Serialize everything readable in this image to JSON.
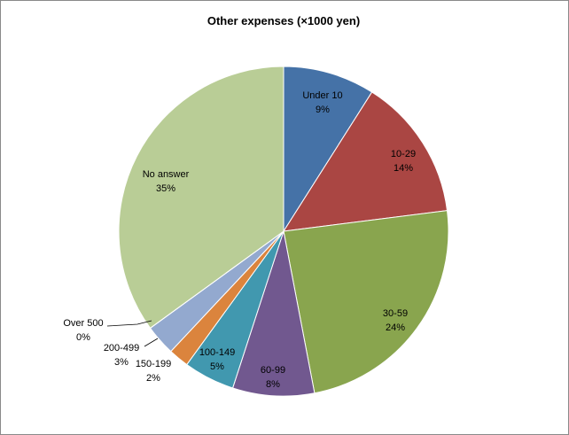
{
  "chart_data": {
    "type": "pie",
    "title": "Other expenses (×1000 yen)",
    "slices": [
      {
        "label": "Under 10",
        "value": 9,
        "value_label": "9%",
        "color": "#4572a7"
      },
      {
        "label": "10-29",
        "value": 14,
        "value_label": "14%",
        "color": "#aa4643"
      },
      {
        "label": "30-59",
        "value": 24,
        "value_label": "24%",
        "color": "#89a54e"
      },
      {
        "label": "60-99",
        "value": 8,
        "value_label": "8%",
        "color": "#71588f"
      },
      {
        "label": "100-149",
        "value": 5,
        "value_label": "5%",
        "color": "#4198af"
      },
      {
        "label": "150-199",
        "value": 2,
        "value_label": "2%",
        "color": "#db843d"
      },
      {
        "label": "200-499",
        "value": 3,
        "value_label": "3%",
        "color": "#93a9cf"
      },
      {
        "label": "Over 500",
        "value": 0.01,
        "value_label": "0%",
        "color": "#d19392"
      },
      {
        "label": "No answer",
        "value": 35,
        "value_label": "35%",
        "color": "#b9cd96"
      }
    ]
  }
}
